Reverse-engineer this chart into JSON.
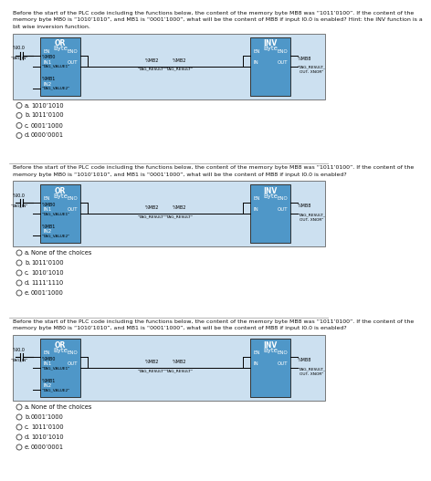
{
  "bg_color": "#ffffff",
  "panel_bg": "#cce0f0",
  "box_fill": "#4f97c8",
  "questions": [
    {
      "lines": [
        "Before the start of the PLC code including the functions below, the content of the memory byte MB8 was “1011’0100”. If the content of the",
        "memory byte MB0 is “1010’1010”, and MB1 is “0001’1000”, what will be the content of MB8 if input I0.0 is enabled? Hint: the INV function is a",
        "bit wise inversion function."
      ],
      "choices": [
        [
          "a.",
          "1010’1010"
        ],
        [
          "b.",
          "1011’0100"
        ],
        [
          "c.",
          "0001’1000"
        ],
        [
          "d.",
          "0000’0001"
        ]
      ]
    },
    {
      "lines": [
        "Before the start of the PLC code including the functions below, the content of the memory byte MB8 was “1011’0100”. If the content of the",
        "memory byte MB0 is “1010’1010”, and MB1 is “0001’1000”, what will be the content of MB8 if input I0.0 is enabled?"
      ],
      "choices": [
        [
          "a.",
          "None of the choices"
        ],
        [
          "b.",
          "1011’0100"
        ],
        [
          "c.",
          "1010’1010"
        ],
        [
          "d.",
          "1111’1110"
        ],
        [
          "e.",
          "0001’1000"
        ]
      ]
    },
    {
      "lines": [
        "Before the start of the PLC code including the functions below, the content of the memory byte MB8 was “1011’0100”. If the content of the",
        "memory byte MB0 is “1010’1010”, and MB1 is “0001’1000”, what will be the content of MB8 if input I0.0 is enabled?"
      ],
      "choices": [
        [
          "a.",
          "None of the choices"
        ],
        [
          "b.",
          "0001’1000"
        ],
        [
          "c.",
          "1011’0100"
        ],
        [
          "d.",
          "1010’1010"
        ],
        [
          "e.",
          "0000’0001"
        ]
      ]
    }
  ]
}
